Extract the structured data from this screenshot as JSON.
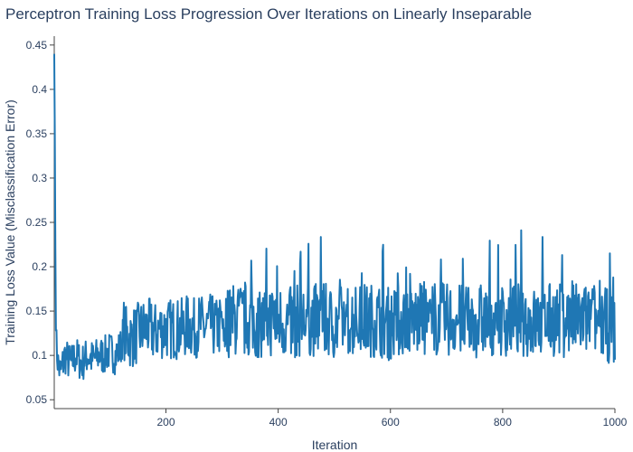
{
  "chart_data": {
    "type": "line",
    "title": "Perceptron Training Loss Progression Over Iterations on Linearly Inseparable",
    "xlabel": "Iteration",
    "ylabel": "Training Loss Value (Misclassification Error)",
    "xlim": [
      1,
      1000
    ],
    "ylim": [
      0.04,
      0.46
    ],
    "grid": false,
    "legend": "none",
    "line_color": "#1f77b4",
    "x_ticks": [
      200,
      400,
      600,
      800,
      1000
    ],
    "x_tick_labels": [
      "200",
      "400",
      "600",
      "800",
      "1000"
    ],
    "y_ticks": [
      0.05,
      0.1,
      0.15,
      0.2,
      0.25,
      0.3,
      0.35,
      0.4,
      0.45
    ],
    "y_tick_labels": [
      "0.05",
      "0.1",
      "0.15",
      "0.2",
      "0.25",
      "0.3",
      "0.35",
      "0.4",
      "0.45"
    ],
    "series": [
      {
        "x": [
          1,
          2,
          3,
          4,
          5,
          8,
          12,
          20,
          30,
          40,
          50,
          60,
          70,
          80,
          90,
          100,
          110,
          120,
          125,
          130,
          140,
          150,
          160,
          170,
          180,
          190,
          200,
          210,
          220,
          230,
          240,
          250,
          260,
          270,
          280,
          290,
          300,
          320,
          340,
          360,
          380,
          400,
          420,
          440,
          460,
          480,
          500,
          520,
          540,
          560,
          580,
          600,
          620,
          640,
          660,
          680,
          700,
          720,
          740,
          760,
          780,
          800,
          820,
          840,
          860,
          880,
          900,
          920,
          940,
          960,
          980,
          1000
        ],
        "y": [
          0.44,
          0.35,
          0.22,
          0.15,
          0.11,
          0.09,
          0.08,
          0.1,
          0.09,
          0.1,
          0.09,
          0.1,
          0.095,
          0.1,
          0.1,
          0.105,
          0.1,
          0.11,
          0.13,
          0.12,
          0.12,
          0.125,
          0.13,
          0.13,
          0.125,
          0.13,
          0.13,
          0.13,
          0.13,
          0.13,
          0.135,
          0.13,
          0.135,
          0.13,
          0.135,
          0.13,
          0.135,
          0.14,
          0.14,
          0.135,
          0.14,
          0.14,
          0.135,
          0.14,
          0.14,
          0.14,
          0.135,
          0.14,
          0.14,
          0.14,
          0.14,
          0.135,
          0.14,
          0.14,
          0.14,
          0.14,
          0.14,
          0.14,
          0.135,
          0.14,
          0.14,
          0.14,
          0.14,
          0.14,
          0.135,
          0.14,
          0.14,
          0.14,
          0.14,
          0.14,
          0.135,
          0.13
        ]
      }
    ]
  }
}
